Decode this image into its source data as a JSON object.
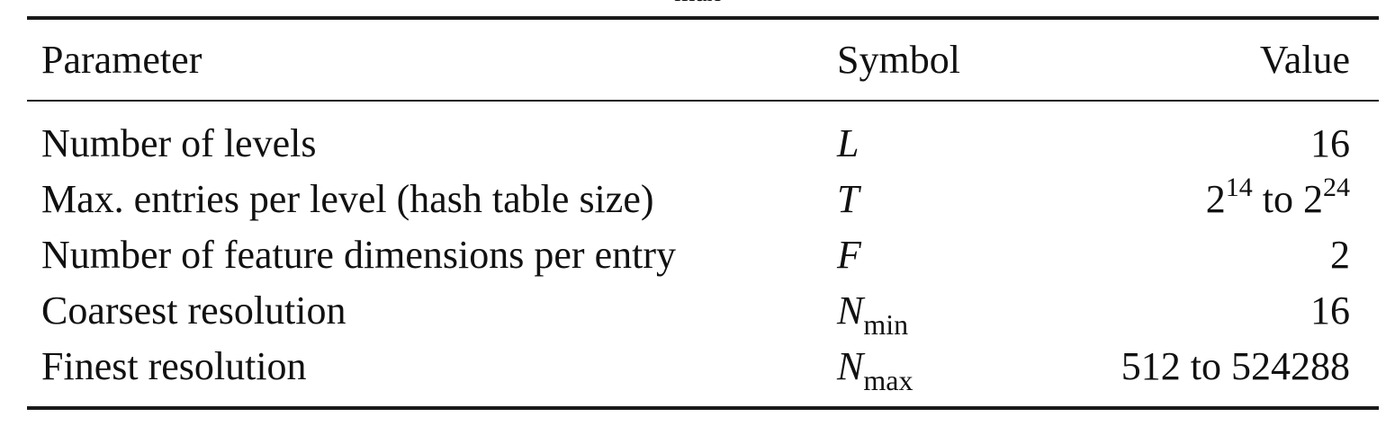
{
  "caption_fragment": "max",
  "table": {
    "headers": {
      "parameter": "Parameter",
      "symbol": "Symbol",
      "value": "Value"
    },
    "rows": [
      {
        "parameter": "Number of levels",
        "symbol": "L",
        "symbol_sub": "",
        "value": "16"
      },
      {
        "parameter": "Max. entries per level (hash table size)",
        "symbol": "T",
        "symbol_sub": "",
        "value_base_1": "2",
        "value_exp_1": "14",
        "value_mid": " to ",
        "value_base_2": "2",
        "value_exp_2": "24"
      },
      {
        "parameter": "Number of feature dimensions per entry",
        "symbol": "F",
        "symbol_sub": "",
        "value": "2"
      },
      {
        "parameter": "Coarsest resolution",
        "symbol": "N",
        "symbol_sub": "min",
        "value": "16"
      },
      {
        "parameter": "Finest resolution",
        "symbol": "N",
        "symbol_sub": "max",
        "value": "512 to 524288"
      }
    ]
  }
}
